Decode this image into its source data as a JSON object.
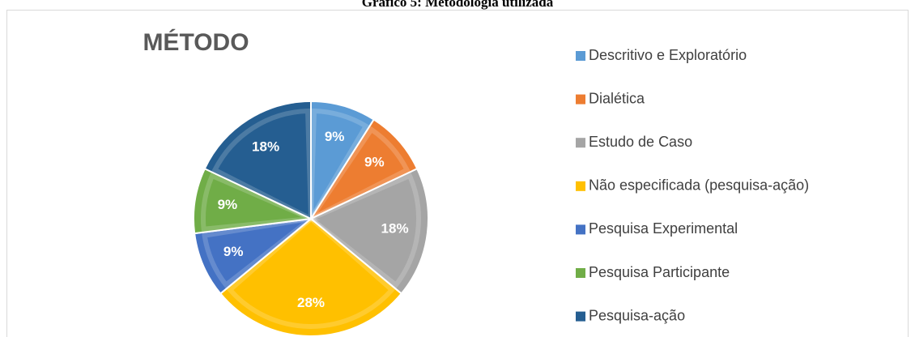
{
  "caption": "Gráfico 5: Metodologia utilizada",
  "chart_data": {
    "type": "pie",
    "title": "MÉTODO",
    "categories": [
      "Descritivo e Exploratório",
      "Dialética",
      "Estudo de Caso",
      "Não especificada (pesquisa-ação)",
      "Pesquisa Experimental",
      "Pesquisa Participante",
      "Pesquisa-ação"
    ],
    "values": [
      9,
      9,
      18,
      28,
      9,
      9,
      18
    ],
    "value_labels": [
      "9%",
      "9%",
      "18%",
      "28%",
      "9%",
      "9%",
      "18%"
    ],
    "colors": [
      "#5b9bd5",
      "#ed7d31",
      "#a5a5a5",
      "#ffc000",
      "#4472c4",
      "#70ad47",
      "#255e91"
    ],
    "legend": "right"
  }
}
